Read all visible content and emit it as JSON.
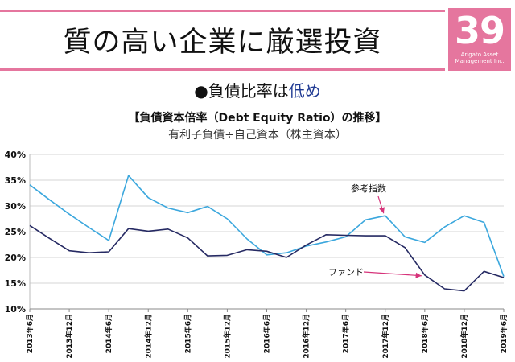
{
  "slide": {
    "number": "39",
    "logo_text": "Arigato Asset Management Inc.",
    "title": "質の高い企業に厳選投資",
    "subtitle_main": "●負債比率は",
    "subtitle_highlight": "低め"
  },
  "colors": {
    "accent": "#e5769e",
    "highlight_text": "#1f3a93",
    "reference_line": "#3ba7dd",
    "fund_line": "#262a63",
    "arrow": "#d6337a"
  },
  "chart_data": {
    "type": "line",
    "title": "【負債資本倍率（Debt Equity Ratio）の推移】",
    "subtitle": "有利子負債÷自己資本（株主資本）",
    "y_tick_labels": [
      "40%",
      "35%",
      "30%",
      "25%",
      "20%",
      "15%",
      "10%"
    ],
    "x_tick_labels": [
      "2013年6月",
      "2013年12月",
      "2014年6月",
      "2014年12月",
      "2015年6月",
      "2015年12月",
      "2016年6月",
      "2016年12月",
      "2017年6月",
      "2017年12月",
      "2018年6月",
      "2018年12月",
      "2019年6月"
    ],
    "ylim": [
      10,
      40
    ],
    "x_count": 25,
    "series": [
      {
        "name": "参考指数",
        "values": [
          34.1,
          31.2,
          28.4,
          25.8,
          23.3,
          35.9,
          31.6,
          29.6,
          28.7,
          29.9,
          27.5,
          23.6,
          20.5,
          20.9,
          22.2,
          23.0,
          24.0,
          27.3,
          28.1,
          24.0,
          22.9,
          25.9,
          28.1,
          26.8,
          16.3
        ]
      },
      {
        "name": "ファンド",
        "values": [
          26.2,
          23.7,
          21.3,
          20.9,
          21.1,
          25.6,
          25.1,
          25.5,
          23.8,
          20.3,
          20.4,
          21.5,
          21.2,
          20.0,
          22.4,
          24.4,
          24.3,
          24.2,
          24.2,
          21.9,
          16.6,
          13.9,
          13.5,
          17.3,
          16.1
        ]
      }
    ],
    "annotations": [
      {
        "label": "参考指数",
        "points_to": "参考指数"
      },
      {
        "label": "ファンド",
        "points_to": "ファンド"
      }
    ]
  }
}
